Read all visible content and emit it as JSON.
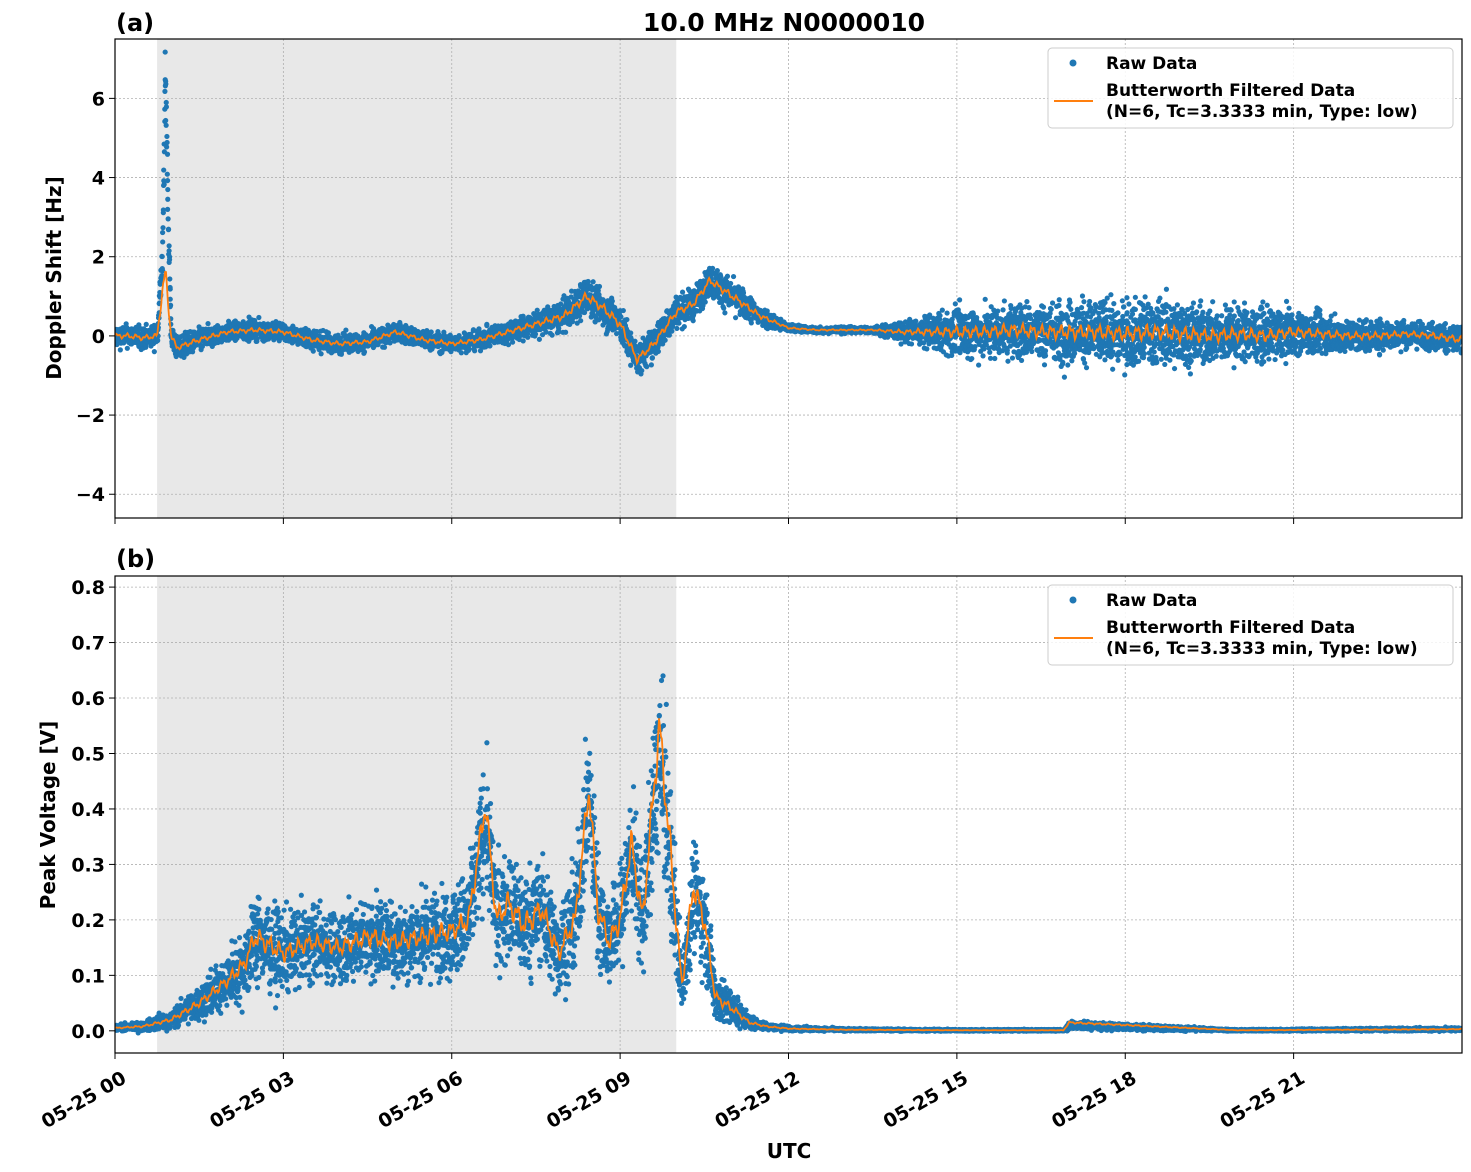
{
  "figure": {
    "title": "10.0 MHz N0000010",
    "xlabel": "UTC",
    "colors": {
      "raw": "#1f77b4",
      "filtered": "#ff7f0e",
      "shade": "#e8e8e8",
      "grid": "#b0b0b0"
    }
  },
  "legend": {
    "raw_label": "Raw Data",
    "filtered_label_line1": "Butterworth Filtered Data",
    "filtered_label_line2": "(N=6, Tc=3.3333 min, Type: low)"
  },
  "chart_data": [
    {
      "type": "scatter",
      "panel_label": "(a)",
      "ylabel": "Doppler Shift [Hz]",
      "xlim": [
        0,
        24
      ],
      "ylim": [
        -4.6,
        7.5
      ],
      "yticks": [
        6,
        4,
        2,
        0,
        -2,
        -4
      ],
      "ytick_labels": [
        "6",
        "4",
        "2",
        "0",
        "−2",
        "−4"
      ],
      "xticks": [
        0,
        3,
        6,
        9,
        12,
        15,
        18,
        21
      ],
      "grid": true,
      "legend_position": "top-right",
      "shaded_interval": [
        0.75,
        10.0
      ],
      "series": [
        {
          "name": "Raw Data",
          "kind": "points",
          "x": [
            0.0,
            0.25,
            0.5,
            0.75,
            0.85,
            0.9,
            0.95,
            1.0,
            1.1,
            1.5,
            2.0,
            2.5,
            3.0,
            3.5,
            4.0,
            4.5,
            5.0,
            5.5,
            6.0,
            6.5,
            7.0,
            7.5,
            8.0,
            8.4,
            8.7,
            9.0,
            9.3,
            9.6,
            10.0,
            10.3,
            10.6,
            11.0,
            11.5,
            12.0,
            12.5,
            13.0,
            13.5,
            14.0,
            14.5,
            15.0,
            15.5,
            16.0,
            16.5,
            17.0,
            17.5,
            18.0,
            18.5,
            19.0,
            19.5,
            20.0,
            20.5,
            21.0,
            21.5,
            22.0,
            22.5,
            23.0,
            23.5,
            24.0
          ],
          "y": [
            0.0,
            0.0,
            -0.05,
            0.0,
            2.0,
            6.8,
            3.0,
            0.0,
            -0.3,
            -0.1,
            0.1,
            0.15,
            0.1,
            -0.1,
            -0.2,
            -0.15,
            0.1,
            -0.1,
            -0.2,
            -0.1,
            0.1,
            0.3,
            0.5,
            1.0,
            0.7,
            0.3,
            -0.6,
            -0.2,
            0.6,
            0.8,
            1.4,
            1.0,
            0.5,
            0.2,
            0.15,
            0.15,
            0.15,
            0.1,
            0.1,
            0.1,
            0.1,
            0.15,
            0.1,
            0.1,
            0.1,
            0.05,
            0.1,
            0.05,
            0.0,
            0.05,
            0.0,
            0.1,
            0.05,
            0.0,
            0.0,
            0.05,
            0.0,
            -0.1
          ],
          "spread": [
            0.35,
            0.35,
            0.35,
            0.35,
            0.8,
            1.0,
            0.8,
            0.4,
            0.35,
            0.35,
            0.3,
            0.3,
            0.3,
            0.3,
            0.3,
            0.3,
            0.3,
            0.3,
            0.3,
            0.3,
            0.35,
            0.4,
            0.5,
            0.6,
            0.6,
            0.6,
            0.5,
            0.5,
            0.5,
            0.5,
            0.5,
            0.5,
            0.35,
            0.12,
            0.1,
            0.1,
            0.1,
            0.3,
            0.5,
            0.8,
            0.8,
            0.9,
            0.9,
            1.0,
            1.0,
            1.0,
            1.1,
            1.0,
            0.9,
            0.9,
            0.8,
            0.7,
            0.6,
            0.5,
            0.5,
            0.4,
            0.45,
            0.5
          ]
        },
        {
          "name": "Butterworth Filtered Data",
          "kind": "line",
          "x": [
            0.0,
            0.25,
            0.5,
            0.75,
            0.85,
            0.9,
            0.95,
            1.0,
            1.1,
            1.5,
            2.0,
            2.5,
            3.0,
            3.5,
            4.0,
            4.5,
            5.0,
            5.5,
            6.0,
            6.5,
            7.0,
            7.5,
            8.0,
            8.4,
            8.7,
            9.0,
            9.3,
            9.6,
            10.0,
            10.3,
            10.6,
            11.0,
            11.5,
            12.0,
            12.5,
            13.0,
            13.5,
            14.0,
            14.5,
            15.0,
            15.5,
            16.0,
            16.5,
            17.0,
            17.5,
            18.0,
            18.5,
            19.0,
            19.5,
            20.0,
            20.5,
            21.0,
            21.5,
            22.0,
            22.5,
            23.0,
            23.5,
            24.0
          ],
          "y": [
            0.0,
            0.0,
            -0.05,
            0.0,
            1.2,
            1.6,
            0.8,
            0.0,
            -0.3,
            -0.1,
            0.1,
            0.15,
            0.1,
            -0.1,
            -0.2,
            -0.15,
            0.1,
            -0.1,
            -0.2,
            -0.1,
            0.1,
            0.3,
            0.5,
            1.0,
            0.7,
            0.3,
            -0.6,
            -0.2,
            0.6,
            0.8,
            1.4,
            1.0,
            0.5,
            0.2,
            0.15,
            0.15,
            0.15,
            0.1,
            0.1,
            0.1,
            0.1,
            0.15,
            0.1,
            0.1,
            0.1,
            0.05,
            0.1,
            0.05,
            0.0,
            0.05,
            0.0,
            0.1,
            0.05,
            0.0,
            0.0,
            0.05,
            0.0,
            -0.1
          ]
        }
      ]
    },
    {
      "type": "scatter",
      "panel_label": "(b)",
      "ylabel": "Peak Voltage [V]",
      "xlim": [
        0,
        24
      ],
      "ylim": [
        -0.04,
        0.82
      ],
      "yticks": [
        0.0,
        0.1,
        0.2,
        0.3,
        0.4,
        0.5,
        0.6,
        0.7,
        0.8
      ],
      "ytick_labels": [
        "0.0",
        "0.1",
        "0.2",
        "0.3",
        "0.4",
        "0.5",
        "0.6",
        "0.7",
        "0.8"
      ],
      "xticks": [
        0,
        3,
        6,
        9,
        12,
        15,
        18,
        21
      ],
      "xtick_labels": [
        "05-25 00",
        "05-25 03",
        "05-25 06",
        "05-25 09",
        "05-25 12",
        "05-25 15",
        "05-25 18",
        "05-25 21"
      ],
      "grid": true,
      "legend_position": "top-right",
      "shaded_interval": [
        0.75,
        10.0
      ],
      "series": [
        {
          "name": "Raw Data",
          "kind": "points",
          "x": [
            0.0,
            0.5,
            1.0,
            1.5,
            2.0,
            2.3,
            2.5,
            3.0,
            3.5,
            4.0,
            4.5,
            5.0,
            5.5,
            6.0,
            6.3,
            6.6,
            6.8,
            7.0,
            7.3,
            7.6,
            7.9,
            8.2,
            8.45,
            8.6,
            8.8,
            9.0,
            9.2,
            9.4,
            9.7,
            9.9,
            10.1,
            10.3,
            10.5,
            10.7,
            11.0,
            11.3,
            11.6,
            12.0,
            13.0,
            15.0,
            16.9,
            17.0,
            20.0,
            24.0
          ],
          "y": [
            0.005,
            0.008,
            0.02,
            0.05,
            0.09,
            0.12,
            0.17,
            0.14,
            0.16,
            0.15,
            0.17,
            0.16,
            0.17,
            0.18,
            0.2,
            0.38,
            0.2,
            0.23,
            0.19,
            0.22,
            0.14,
            0.2,
            0.43,
            0.22,
            0.16,
            0.2,
            0.33,
            0.2,
            0.5,
            0.3,
            0.08,
            0.25,
            0.2,
            0.06,
            0.04,
            0.015,
            0.008,
            0.004,
            0.002,
            0.001,
            0.001,
            0.01,
            0.001,
            0.003
          ],
          "spread": [
            0.006,
            0.01,
            0.02,
            0.04,
            0.06,
            0.08,
            0.1,
            0.09,
            0.08,
            0.08,
            0.09,
            0.09,
            0.09,
            0.1,
            0.11,
            0.15,
            0.12,
            0.12,
            0.12,
            0.12,
            0.1,
            0.12,
            0.15,
            0.13,
            0.1,
            0.12,
            0.15,
            0.13,
            0.2,
            0.18,
            0.07,
            0.12,
            0.12,
            0.06,
            0.04,
            0.015,
            0.008,
            0.005,
            0.003,
            0.002,
            0.002,
            0.01,
            0.002,
            0.004
          ]
        },
        {
          "name": "Butterworth Filtered Data",
          "kind": "line",
          "x": [
            0.0,
            0.5,
            1.0,
            1.5,
            2.0,
            2.3,
            2.5,
            3.0,
            3.5,
            4.0,
            4.5,
            5.0,
            5.5,
            6.0,
            6.3,
            6.6,
            6.8,
            7.0,
            7.3,
            7.6,
            7.9,
            8.2,
            8.45,
            8.6,
            8.8,
            9.0,
            9.2,
            9.4,
            9.7,
            9.9,
            10.1,
            10.3,
            10.5,
            10.7,
            11.0,
            11.3,
            11.6,
            12.0,
            13.0,
            15.0,
            16.9,
            17.0,
            20.0,
            24.0
          ],
          "y": [
            0.005,
            0.008,
            0.02,
            0.05,
            0.09,
            0.12,
            0.17,
            0.14,
            0.16,
            0.15,
            0.17,
            0.16,
            0.17,
            0.18,
            0.2,
            0.41,
            0.2,
            0.23,
            0.19,
            0.22,
            0.14,
            0.2,
            0.44,
            0.22,
            0.16,
            0.2,
            0.34,
            0.2,
            0.55,
            0.32,
            0.08,
            0.26,
            0.2,
            0.06,
            0.04,
            0.015,
            0.008,
            0.004,
            0.002,
            0.001,
            0.001,
            0.015,
            0.001,
            0.003
          ]
        }
      ]
    }
  ]
}
